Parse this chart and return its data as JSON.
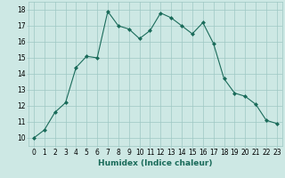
{
  "x": [
    0,
    1,
    2,
    3,
    4,
    5,
    6,
    7,
    8,
    9,
    10,
    11,
    12,
    13,
    14,
    15,
    16,
    17,
    18,
    19,
    20,
    21,
    22,
    23
  ],
  "y": [
    10.0,
    10.5,
    11.6,
    12.2,
    14.4,
    15.1,
    15.0,
    17.9,
    17.0,
    16.8,
    16.2,
    16.7,
    17.8,
    17.5,
    17.0,
    16.5,
    17.2,
    15.9,
    13.7,
    12.8,
    12.6,
    12.1,
    11.1,
    10.9
  ],
  "line_color": "#1a6b5a",
  "marker": "D",
  "marker_size": 2,
  "bg_color": "#cde8e4",
  "grid_color": "#9ec8c4",
  "xlabel": "Humidex (Indice chaleur)",
  "xlim": [
    -0.5,
    23.5
  ],
  "ylim": [
    9.5,
    18.5
  ],
  "yticks": [
    10,
    11,
    12,
    13,
    14,
    15,
    16,
    17,
    18
  ],
  "xticks": [
    0,
    1,
    2,
    3,
    4,
    5,
    6,
    7,
    8,
    9,
    10,
    11,
    12,
    13,
    14,
    15,
    16,
    17,
    18,
    19,
    20,
    21,
    22,
    23
  ],
  "label_fontsize": 6.5,
  "tick_fontsize": 5.5
}
